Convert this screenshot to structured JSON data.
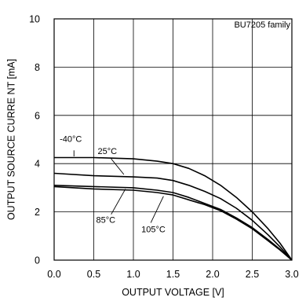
{
  "chart_data": {
    "type": "line",
    "title": "",
    "family_label": "BU7205 family",
    "xlabel": "OUTPUT VOLTAGE [V]",
    "ylabel": "OUTPUT SOURCE CURRE NT [mA]",
    "xlim": [
      0,
      3
    ],
    "ylim": [
      0,
      10
    ],
    "xticks": [
      0,
      0.5,
      1,
      1.5,
      2,
      2.5,
      3
    ],
    "xtick_labels": [
      "0.0",
      "0.5",
      "1.0",
      "1.5",
      "2.0",
      "2.5",
      "3.0"
    ],
    "yticks": [
      0,
      2,
      4,
      6,
      8,
      10
    ],
    "ytick_labels": [
      "0",
      "2",
      "4",
      "6",
      "8",
      "10"
    ],
    "grid": true,
    "series": [
      {
        "name": "-40°C",
        "x": [
          0,
          0.5,
          1.0,
          1.3,
          1.5,
          1.7,
          1.9,
          2.1,
          2.3,
          2.5,
          2.7,
          2.85,
          3.0
        ],
        "y": [
          4.25,
          4.25,
          4.2,
          4.1,
          4.0,
          3.8,
          3.5,
          3.1,
          2.6,
          2.0,
          1.3,
          0.7,
          0.0
        ]
      },
      {
        "name": "25°C",
        "x": [
          0,
          0.5,
          1.0,
          1.3,
          1.5,
          1.7,
          1.9,
          2.1,
          2.3,
          2.5,
          2.7,
          2.85,
          3.0
        ],
        "y": [
          3.6,
          3.5,
          3.45,
          3.4,
          3.3,
          3.1,
          2.85,
          2.55,
          2.15,
          1.65,
          1.05,
          0.55,
          0.0
        ]
      },
      {
        "name": "85°C",
        "x": [
          0,
          0.5,
          1.0,
          1.3,
          1.5,
          1.7,
          1.9,
          2.1,
          2.3,
          2.5,
          2.7,
          2.85,
          3.0
        ],
        "y": [
          3.1,
          3.05,
          3.0,
          2.9,
          2.8,
          2.6,
          2.35,
          2.1,
          1.75,
          1.35,
          0.85,
          0.45,
          0.0
        ]
      },
      {
        "name": "105°C",
        "x": [
          0,
          0.5,
          1.0,
          1.3,
          1.5,
          1.7,
          1.9,
          2.1,
          2.3,
          2.5,
          2.7,
          2.85,
          3.0
        ],
        "y": [
          3.05,
          2.95,
          2.9,
          2.8,
          2.7,
          2.5,
          2.3,
          2.05,
          1.7,
          1.3,
          0.8,
          0.42,
          0.0
        ]
      }
    ],
    "annotations": [
      {
        "text": "-40°C",
        "x": 0.07,
        "y": 4.9,
        "lx1": 0.25,
        "ly1": 4.55,
        "lx2": 0.25,
        "ly2": 4.3
      },
      {
        "text": "25°C",
        "x": 0.55,
        "y": 4.4,
        "lx1": 0.72,
        "ly1": 4.2,
        "lx2": 0.88,
        "ly2": 3.55
      },
      {
        "text": "85°C",
        "x": 0.53,
        "y": 1.55,
        "lx1": 0.72,
        "ly1": 1.9,
        "lx2": 0.9,
        "ly2": 2.95
      },
      {
        "text": "105°C",
        "x": 1.1,
        "y": 1.15,
        "lx1": 1.22,
        "ly1": 1.55,
        "lx2": 1.38,
        "ly2": 2.65
      }
    ]
  }
}
